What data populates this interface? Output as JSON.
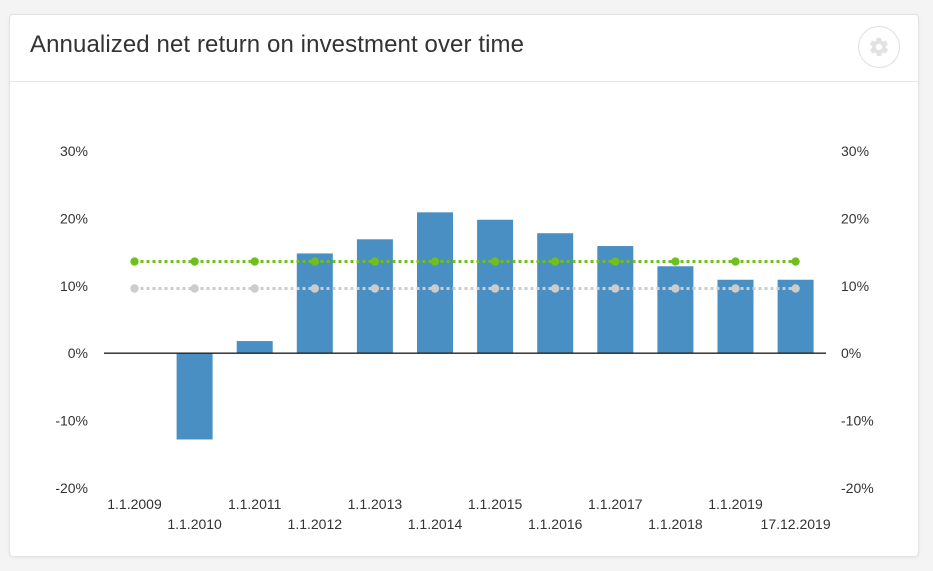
{
  "card": {
    "title": "Annualized net return on investment over time",
    "settings_icon": "gear-icon"
  },
  "chart_data": {
    "type": "bar",
    "categories": [
      "1.1.2009",
      "1.1.2010",
      "1.1.2011",
      "1.1.2012",
      "1.1.2013",
      "1.1.2014",
      "1.1.2015",
      "1.1.2016",
      "1.1.2017",
      "1.1.2018",
      "1.1.2019",
      "17.12.2019"
    ],
    "values": [
      0,
      -12.8,
      1.8,
      14.8,
      16.9,
      20.9,
      19.8,
      17.8,
      15.9,
      12.9,
      10.9,
      10.9
    ],
    "series": [
      {
        "type": "line",
        "style": "dotted",
        "color": "#6fbf1e",
        "values": [
          13.6,
          13.6,
          13.6,
          13.6,
          13.6,
          13.6,
          13.6,
          13.6,
          13.6,
          13.6,
          13.6,
          13.6
        ]
      },
      {
        "type": "line",
        "style": "dotted",
        "color": "#cccccc",
        "values": [
          9.6,
          9.6,
          9.6,
          9.6,
          9.6,
          9.6,
          9.6,
          9.6,
          9.6,
          9.6,
          9.6,
          9.6
        ]
      }
    ],
    "bar_color": "#4a8fc3",
    "ylim": [
      -20,
      30
    ],
    "yticks": [
      "-20%",
      "-10%",
      "0%",
      "10%",
      "20%",
      "30%"
    ],
    "ytick_values": [
      -20,
      -10,
      0,
      10,
      20,
      30
    ],
    "dual_axis": true,
    "grid": false,
    "legend": "none"
  }
}
